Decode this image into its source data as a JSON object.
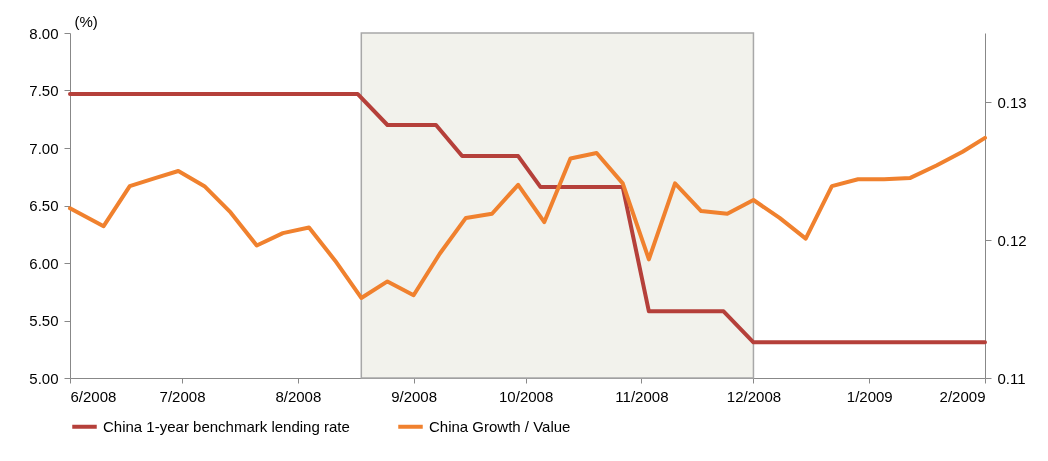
{
  "chart_data": {
    "type": "line",
    "ylabel": "(%)",
    "xlim": [
      "2008-06-01",
      "2009-02-01"
    ],
    "xticks": [
      {
        "value": "2008-06-01",
        "label": "6/2008"
      },
      {
        "value": "2008-07-01",
        "label": "7/2008"
      },
      {
        "value": "2008-08-01",
        "label": "8/2008"
      },
      {
        "value": "2008-09-01",
        "label": "9/2008"
      },
      {
        "value": "2008-10-01",
        "label": "10/2008"
      },
      {
        "value": "2008-11-01",
        "label": "11/2008"
      },
      {
        "value": "2008-12-01",
        "label": "12/2008"
      },
      {
        "value": "2009-01-01",
        "label": "1/2009"
      },
      {
        "value": "2009-02-01",
        "label": "2/2009"
      }
    ],
    "ylim": [
      5,
      8
    ],
    "yticks": [
      {
        "value": 5,
        "label": "5.00"
      },
      {
        "value": 5.5,
        "label": "5.50"
      },
      {
        "value": 6,
        "label": "6.00"
      },
      {
        "value": 6.5,
        "label": "6.50"
      },
      {
        "value": 7,
        "label": "7.00"
      },
      {
        "value": 7.5,
        "label": "7.50"
      },
      {
        "value": 8,
        "label": "8.00"
      }
    ],
    "y2lim": [
      0.11,
      0.135
    ],
    "y2ticks": [
      0.11,
      0.12,
      0.13
    ],
    "series": [
      {
        "name": "China 1-year benchmark lending rate",
        "color": "#b5403a",
        "x": [
          "2008-06-01",
          "2008-08-17",
          "2008-08-25",
          "2008-09-07",
          "2008-09-14",
          "2008-09-29",
          "2008-10-05",
          "2008-10-27",
          "2008-11-03",
          "2008-11-23",
          "2008-12-01",
          "2009-02-01"
        ],
        "values": [
          7.47,
          7.47,
          7.2,
          7.2,
          6.93,
          6.93,
          6.66,
          6.66,
          5.58,
          5.58,
          5.31,
          5.31
        ]
      },
      {
        "name": "China Growth / Value",
        "color": "#f0812e",
        "axis": "y2",
        "x": [
          "2008-06-01",
          "2008-06-10",
          "2008-06-17",
          "2008-06-24",
          "2008-06-30",
          "2008-07-07",
          "2008-07-14",
          "2008-07-21",
          "2008-07-28",
          "2008-08-04",
          "2008-08-11",
          "2008-08-18",
          "2008-08-25",
          "2008-09-01",
          "2008-09-08",
          "2008-09-15",
          "2008-09-22",
          "2008-09-29",
          "2008-10-06",
          "2008-10-13",
          "2008-10-20",
          "2008-10-27",
          "2008-11-03",
          "2008-11-10",
          "2008-11-17",
          "2008-11-24",
          "2008-12-01",
          "2008-12-08",
          "2008-12-15",
          "2008-12-22",
          "2008-12-29",
          "2009-01-05",
          "2009-01-12",
          "2009-01-19",
          "2009-01-26",
          "2009-02-01"
        ],
        "values": [
          0.1223,
          0.121,
          0.1239,
          0.1245,
          0.125,
          0.1239,
          0.122,
          0.1196,
          0.1205,
          0.1209,
          0.1185,
          0.1158,
          0.117,
          0.116,
          0.119,
          0.1216,
          0.1219,
          0.124,
          0.1213,
          0.1259,
          0.1263,
          0.1241,
          0.1186,
          0.1241,
          0.1221,
          0.1219,
          0.1229,
          0.1216,
          0.1201,
          0.1239,
          0.1244,
          0.1244,
          0.1245,
          0.1254,
          0.1264,
          0.1274
        ]
      }
    ],
    "bands": [
      {
        "axis": "x",
        "from": "2008-08-18",
        "to": "2008-12-01",
        "color": "#f2f2ec"
      }
    ],
    "legend": "bottom",
    "grid": false,
    "line_style": "solid",
    "marker": "none"
  }
}
